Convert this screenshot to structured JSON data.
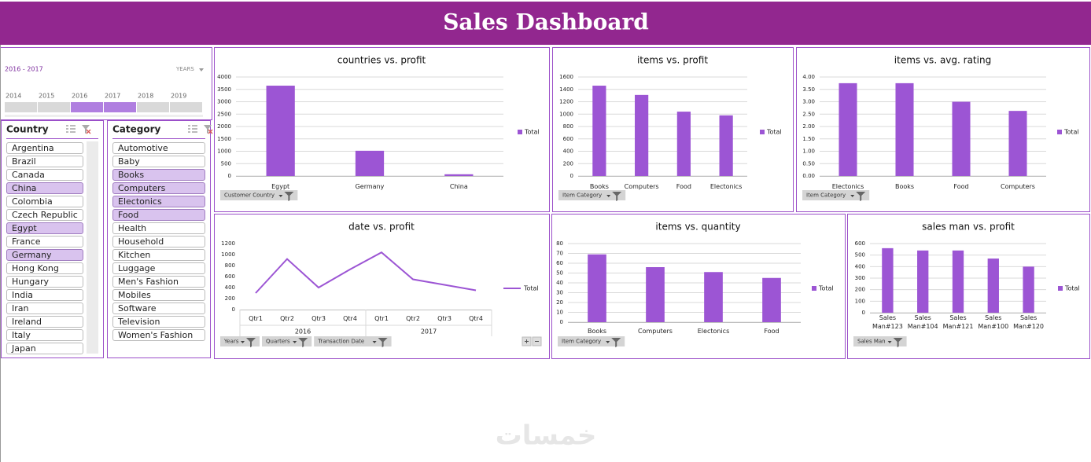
{
  "header": {
    "title": "Sales Dashboard"
  },
  "timeline": {
    "label": "2016 - 2017",
    "unit": "YEARS",
    "years": [
      "2014",
      "2015",
      "2016",
      "2017",
      "2018",
      "2019"
    ],
    "selected": [
      false,
      false,
      true,
      true,
      false,
      false
    ]
  },
  "slicers": [
    {
      "title": "Country",
      "items": [
        "Argentina",
        "Brazil",
        "Canada",
        "China",
        "Colombia",
        "Czech Republic",
        "Egypt",
        "France",
        "Germany",
        "Hong Kong",
        "Hungary",
        "India",
        "Iran",
        "Ireland",
        "Italy",
        "Japan"
      ],
      "selected": [
        false,
        false,
        false,
        true,
        false,
        false,
        true,
        false,
        true,
        false,
        false,
        false,
        false,
        false,
        false,
        false
      ]
    },
    {
      "title": "Category",
      "items": [
        "Automotive",
        "Baby",
        "Books",
        "Computers",
        "Electonics",
        "Food",
        "Health",
        "Household",
        "Kitchen",
        "Luggage",
        "Men's Fashion",
        "Mobiles",
        "Software",
        "Television",
        "Women's Fashion"
      ],
      "selected": [
        false,
        false,
        true,
        true,
        true,
        true,
        false,
        false,
        false,
        false,
        false,
        false,
        false,
        false,
        false
      ]
    }
  ],
  "chart_data": [
    {
      "type": "bar",
      "title": "countries vs. profit",
      "categories": [
        "Egypt",
        "Germany",
        "China"
      ],
      "series": [
        {
          "name": "Total",
          "color": "#9c55d4",
          "values": [
            3650,
            1020,
            70
          ]
        }
      ],
      "ylim": [
        0,
        4000
      ],
      "yticks": [
        0,
        500,
        1000,
        1500,
        2000,
        2500,
        3000,
        3500,
        4000
      ],
      "grid": true,
      "filters": [
        "Customer Country"
      ]
    },
    {
      "type": "bar",
      "title": "items vs. profit",
      "categories": [
        "Books",
        "Computers",
        "Food",
        "Electonics"
      ],
      "series": [
        {
          "name": "Total",
          "color": "#9c55d4",
          "values": [
            1460,
            1310,
            1040,
            980
          ]
        }
      ],
      "ylim": [
        0,
        1600
      ],
      "yticks": [
        0,
        200,
        400,
        600,
        800,
        1000,
        1200,
        1400,
        1600
      ],
      "grid": true,
      "filters": [
        "Item Category"
      ]
    },
    {
      "type": "bar",
      "title": "items vs. avg. rating",
      "categories": [
        "Electonics",
        "Books",
        "Food",
        "Computers"
      ],
      "series": [
        {
          "name": "Total",
          "color": "#9c55d4",
          "values": [
            3.75,
            3.75,
            3.0,
            2.63
          ]
        }
      ],
      "ylim": [
        0,
        4
      ],
      "yticks": [
        {
          "value": 0,
          "label": "0.00"
        },
        {
          "value": 0.5,
          "label": "0.50"
        },
        {
          "value": 1,
          "label": "1.00"
        },
        {
          "value": 1.5,
          "label": "1.50"
        },
        {
          "value": 2,
          "label": "2.00"
        },
        {
          "value": 2.5,
          "label": "2.50"
        },
        {
          "value": 3,
          "label": "3.00"
        },
        {
          "value": 3.5,
          "label": "3.50"
        },
        {
          "value": 4,
          "label": "4.00"
        }
      ],
      "grid": true,
      "filters": [
        "Item Category"
      ]
    },
    {
      "type": "line",
      "title": "date vs. profit",
      "categories": [
        "Qtr1",
        "Qtr2",
        "Qtr3",
        "Qtr4",
        "Qtr1",
        "Qtr2",
        "Qtr3",
        "Qtr4"
      ],
      "groups": [
        "2016",
        "2017"
      ],
      "series": [
        {
          "name": "Total",
          "color": "#9c55d4",
          "values": [
            300,
            920,
            400,
            730,
            1040,
            550,
            450,
            350
          ]
        }
      ],
      "ylim": [
        0,
        1200
      ],
      "yticks": [
        0,
        200,
        400,
        600,
        800,
        1000,
        1200
      ],
      "grid": false,
      "filters": [
        "Years",
        "Quarters",
        "Transaction Date"
      ]
    },
    {
      "type": "bar",
      "title": "items vs. quantity",
      "categories": [
        "Books",
        "Computers",
        "Electonics",
        "Food"
      ],
      "series": [
        {
          "name": "Total",
          "color": "#9c55d4",
          "values": [
            69,
            56,
            51,
            45
          ]
        }
      ],
      "ylim": [
        0,
        80
      ],
      "yticks": [
        0,
        10,
        20,
        30,
        40,
        50,
        60,
        70,
        80
      ],
      "grid": true,
      "filters": [
        "Item Category"
      ]
    },
    {
      "type": "bar",
      "title": "sales man vs. profit",
      "categories": [
        "Sales Man#123",
        "Sales Man#104",
        "Sales Man#121",
        "Sales Man#100",
        "Sales Man#120"
      ],
      "series": [
        {
          "name": "Total",
          "color": "#9c55d4",
          "values": [
            560,
            540,
            540,
            470,
            400
          ]
        }
      ],
      "ylim": [
        0,
        600
      ],
      "yticks": [
        0,
        100,
        200,
        300,
        400,
        500,
        600
      ],
      "grid": true,
      "filters": [
        "Sales Man"
      ]
    }
  ],
  "watermark": "خمسات"
}
